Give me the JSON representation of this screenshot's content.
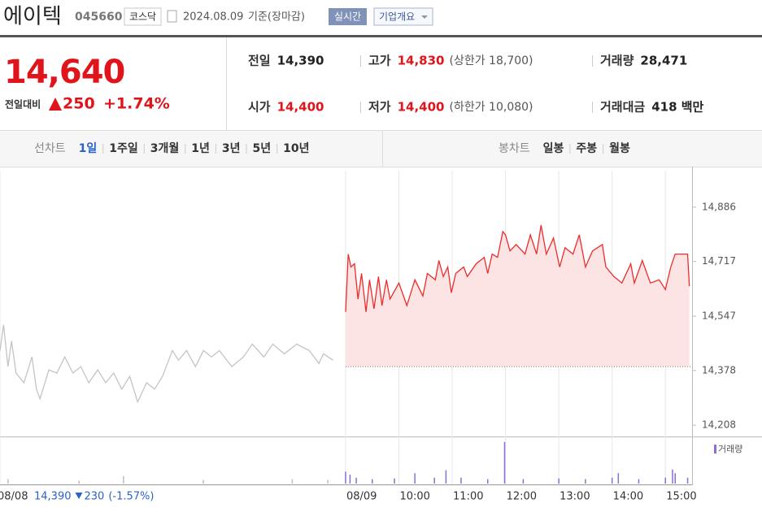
{
  "header": {
    "name": "에이텍",
    "code": "045660",
    "market": "코스닥",
    "date": "2024.08.09",
    "basis": "기준(장마감)",
    "realtime": "실시간",
    "overview": "기업개요"
  },
  "quote": {
    "price": "14,640",
    "change_label": "전일대비",
    "change": "250",
    "rate": "+1.74%",
    "color": "#e0151b"
  },
  "info": {
    "rows": [
      [
        {
          "label": "전일",
          "value": "14,390",
          "color": "#222222"
        },
        {
          "label": "고가",
          "value": "14,830",
          "color": "#e0151b",
          "note": "(상한가 18,700)"
        },
        {
          "label": "거래량",
          "value": "28,471",
          "color": "#222222"
        }
      ],
      [
        {
          "label": "시가",
          "value": "14,400",
          "color": "#e0151b"
        },
        {
          "label": "저가",
          "value": "14,400",
          "color": "#e0151b",
          "note": "(하한가 10,080)"
        },
        {
          "label": "거래대금",
          "value": "418 백만",
          "color": "#222222"
        }
      ]
    ]
  },
  "tabs": {
    "line": {
      "label": "선차트",
      "items": [
        "1일",
        "1주일",
        "3개월",
        "1년",
        "3년",
        "5년",
        "10년"
      ],
      "selected": 0
    },
    "candle": {
      "label": "봉차트",
      "items": [
        "일봉",
        "주봉",
        "월봉"
      ]
    }
  },
  "chart_data": {
    "type": "line",
    "xlim": [
      -389,
      390
    ],
    "ylim": [
      14178,
      15012
    ],
    "xticks": [
      {
        "value": -389,
        "label": "08/08"
      },
      {
        "value": 0,
        "label": "08/09"
      },
      {
        "value": 60,
        "label": "10:00"
      },
      {
        "value": 120,
        "label": "11:00"
      },
      {
        "value": 180,
        "label": "12:00"
      },
      {
        "value": 240,
        "label": "13:00"
      },
      {
        "value": 300,
        "label": "14:00"
      },
      {
        "value": 360,
        "label": "15:00"
      }
    ],
    "yticks": [
      {
        "value": 14886,
        "label": "14,886"
      },
      {
        "value": 14717,
        "label": "14,717"
      },
      {
        "value": 14547,
        "label": "14,547"
      },
      {
        "value": 14378,
        "label": "14,378"
      },
      {
        "value": 14208,
        "label": "14,208"
      }
    ],
    "grid": "x",
    "baseline": 14390,
    "series": [
      {
        "color": "#c4c4c4",
        "x": [
          -389,
          -385,
          -380,
          -376,
          -371,
          -362,
          -353,
          -348,
          -344,
          -334,
          -325,
          -316,
          -307,
          -298,
          -289,
          -279,
          -270,
          -261,
          -252,
          -243,
          -234,
          -224,
          -215,
          -206,
          -195,
          -188,
          -179,
          -169,
          -160,
          -151,
          -142,
          -128,
          -115,
          -105,
          -92,
          -82,
          -69,
          -55,
          -41,
          -30,
          -25,
          -14
        ],
        "values": [
          14440,
          14520,
          14390,
          14470,
          14370,
          14340,
          14420,
          14320,
          14290,
          14380,
          14370,
          14420,
          14370,
          14390,
          14340,
          14380,
          14340,
          14370,
          14320,
          14360,
          14280,
          14340,
          14320,
          14360,
          14440,
          14410,
          14440,
          14390,
          14440,
          14420,
          14440,
          14390,
          14420,
          14460,
          14420,
          14460,
          14430,
          14460,
          14440,
          14400,
          14430,
          14410
        ]
      },
      {
        "color": "#ee2b2b",
        "fill": "#fde4e4",
        "x": [
          0,
          3,
          6,
          10,
          14,
          18,
          23,
          27,
          32,
          37,
          41,
          46,
          50,
          60,
          69,
          78,
          87,
          92,
          101,
          105,
          110,
          115,
          119,
          124,
          133,
          137,
          147,
          156,
          160,
          165,
          171,
          177,
          180,
          185,
          192,
          202,
          208,
          215,
          220,
          226,
          234,
          241,
          247,
          256,
          263,
          270,
          278,
          289,
          293,
          302,
          311,
          321,
          325,
          334,
          343,
          353,
          360,
          366,
          371,
          385,
          387
        ],
        "values": [
          14560,
          14740,
          14700,
          14710,
          14600,
          14680,
          14560,
          14660,
          14570,
          14670,
          14580,
          14660,
          14600,
          14650,
          14580,
          14660,
          14610,
          14680,
          14660,
          14720,
          14670,
          14700,
          14620,
          14680,
          14700,
          14670,
          14710,
          14730,
          14680,
          14740,
          14730,
          14810,
          14800,
          14750,
          14770,
          14740,
          14800,
          14740,
          14830,
          14740,
          14790,
          14700,
          14760,
          14740,
          14800,
          14700,
          14750,
          14770,
          14700,
          14670,
          14650,
          14710,
          14650,
          14720,
          14650,
          14660,
          14630,
          14700,
          14740,
          14740,
          14640
        ]
      }
    ],
    "volume": {
      "name": "거래량",
      "vlim": [
        0,
        3000
      ],
      "color": "#8c6fd1",
      "series": [
        {
          "color": "#bdbdbd",
          "x": [
            -380,
            -300,
            -250,
            -160,
            -60,
            -20
          ],
          "values": [
            300,
            200,
            500,
            250,
            300,
            250
          ]
        },
        {
          "color": "#8c6fd1",
          "x": [
            0,
            5,
            12,
            30,
            55,
            78,
            100,
            113,
            130,
            160,
            179,
            200,
            240,
            270,
            300,
            307,
            330,
            360,
            368,
            371,
            385
          ],
          "values": [
            800,
            600,
            400,
            300,
            350,
            700,
            400,
            900,
            400,
            300,
            2800,
            300,
            350,
            300,
            400,
            700,
            300,
            400,
            950,
            700,
            400
          ]
        }
      ]
    },
    "prev_close": {
      "price": "14,390",
      "change": "230",
      "rate": "(-1.57%)",
      "color": "#2a62c8"
    }
  }
}
